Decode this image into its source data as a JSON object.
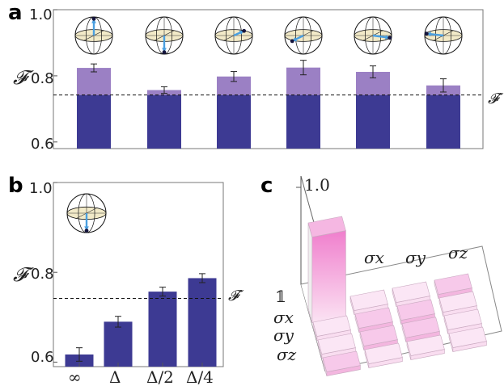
{
  "panels": {
    "a": "a",
    "b": "b",
    "c": "c"
  },
  "colors": {
    "bar_dark": "#3d3a93",
    "bar_light": "#9b80c4",
    "sphere_arrow": "#4a9fe0",
    "equator": "#f2eac8",
    "cube_pink": "#f0a3d8",
    "cube_light": "#f8dcef"
  },
  "chart_data": [
    {
      "panel": "a",
      "type": "bar",
      "ylabel": "𝓕",
      "ylim": [
        0.58,
        1.0
      ],
      "yticks": [
        0.6,
        0.8,
        1.0
      ],
      "ytick_labels": [
        "0.6",
        "0.8",
        "1.0"
      ],
      "categories": [
        "",
        "",
        "",
        "",
        "",
        ""
      ],
      "values": [
        0.824,
        0.757,
        0.798,
        0.825,
        0.812,
        0.771
      ],
      "errors": [
        0.012,
        0.01,
        0.015,
        0.022,
        0.018,
        0.02
      ],
      "threshold": 0.742,
      "threshold_label": "𝓕′",
      "bloch_states": [
        "+z",
        "-z",
        "+x",
        "-x",
        "+y",
        "-y"
      ],
      "grid": false
    },
    {
      "panel": "b",
      "type": "bar",
      "ylabel": "𝓕",
      "ylim": [
        0.59,
        1.0
      ],
      "yticks": [
        0.6,
        0.8,
        1.0
      ],
      "ytick_labels": [
        "0.6",
        "0.8",
        "1.0"
      ],
      "categories": [
        "∞",
        "Δ",
        "Δ/2",
        "Δ/4"
      ],
      "values": [
        0.617,
        0.69,
        0.757,
        0.787
      ],
      "errors": [
        0.015,
        0.012,
        0.01,
        0.01
      ],
      "threshold": 0.742,
      "threshold_label": "𝓕′",
      "bloch_states": [
        "-z"
      ],
      "grid": false
    },
    {
      "panel": "c",
      "type": "heatmap",
      "zlabel_max": "1.0",
      "row_labels": [
        "𝟙",
        "σx",
        "σy",
        "σz"
      ],
      "column_labels": [
        "𝟙",
        "σx",
        "σy",
        "σz"
      ],
      "values": [
        [
          1.0,
          0.0,
          0.0,
          0.03
        ],
        [
          0.0,
          0.04,
          0.03,
          0.0
        ],
        [
          0.0,
          0.04,
          0.05,
          0.0
        ],
        [
          0.03,
          0.0,
          0.0,
          0.0
        ]
      ]
    }
  ]
}
